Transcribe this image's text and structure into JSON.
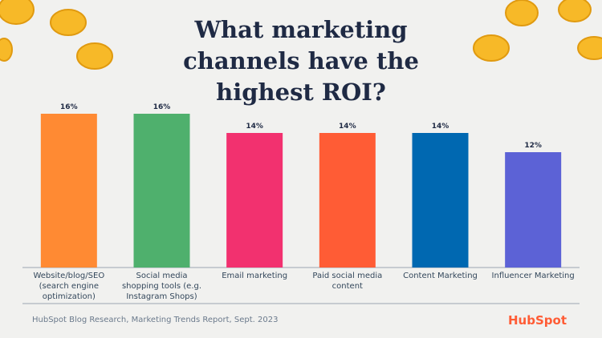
{
  "chart_data": {
    "type": "bar",
    "title": "What marketing channels have the highest ROI?",
    "categories": [
      "Website/blog/SEO (search engine optimization)",
      "Social media shopping tools (e.g. Instagram Shops)",
      "Email marketing",
      "Paid social media content",
      "Content Marketing",
      "Influencer Marketing"
    ],
    "values": [
      16,
      16,
      14,
      14,
      14,
      12
    ],
    "value_labels": [
      "16%",
      "16%",
      "14%",
      "14%",
      "14%",
      "12%"
    ],
    "colors": [
      "#ff8a33",
      "#4fb06d",
      "#f2316f",
      "#ff5c35",
      "#0068b1",
      "#5c62d6"
    ],
    "ylim": [
      0,
      16
    ],
    "source": "HubSpot Blog Research, Marketing Trends Report, Sept. 2023",
    "logo": "HubSpot"
  }
}
